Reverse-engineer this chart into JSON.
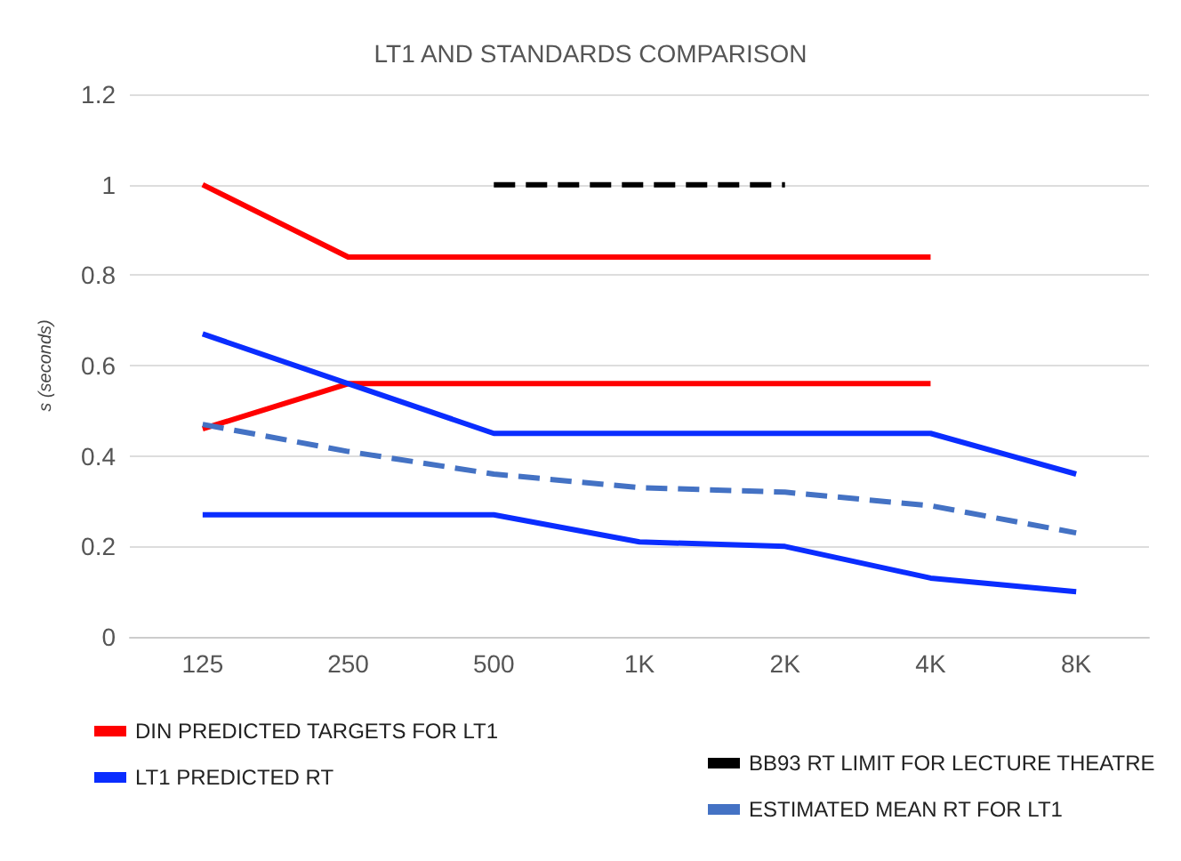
{
  "chart_data": {
    "type": "line",
    "title": "LT1 AND STANDARDS COMPARISON",
    "ylabel": "s (seconds)",
    "categories": [
      "125",
      "250",
      "500",
      "1K",
      "2K",
      "4K",
      "8K"
    ],
    "ylim": [
      0,
      1.2
    ],
    "yticks": [
      0,
      0.2,
      0.4,
      0.6,
      0.8,
      1,
      1.2
    ],
    "grid": "y",
    "legend": "bottom",
    "marker": "none",
    "series": [
      {
        "name": "DIN PREDICTED TARGETS FOR LT1",
        "color": "#ff0000",
        "line_style": "solid",
        "values": [
          1,
          0.84,
          0.84,
          0.84,
          0.84,
          0.84,
          null
        ]
      },
      {
        "color": "#ff0000",
        "line_style": "solid",
        "values": [
          0.46,
          0.56,
          0.56,
          0.56,
          0.56,
          0.56,
          null
        ]
      },
      {
        "name": "LT1 PREDICTED RT",
        "color": "#0a2dff",
        "line_style": "solid",
        "values": [
          0.67,
          0.56,
          0.45,
          0.45,
          0.45,
          0.45,
          0.36
        ]
      },
      {
        "color": "#0a2dff",
        "line_style": "solid",
        "values": [
          0.27,
          0.27,
          0.27,
          0.21,
          0.2,
          0.13,
          0.1
        ]
      },
      {
        "name": "BB93 RT LIMIT FOR LECTURE THEATRE",
        "color": "#000000",
        "line_style": "dashed",
        "values": [
          null,
          null,
          1,
          1,
          1,
          null,
          null
        ]
      },
      {
        "name": "ESTIMATED MEAN RT FOR LT1",
        "color": "#4472c4",
        "line_style": "dashed",
        "values": [
          0.47,
          0.41,
          0.36,
          0.33,
          0.32,
          0.29,
          0.23
        ]
      }
    ]
  }
}
